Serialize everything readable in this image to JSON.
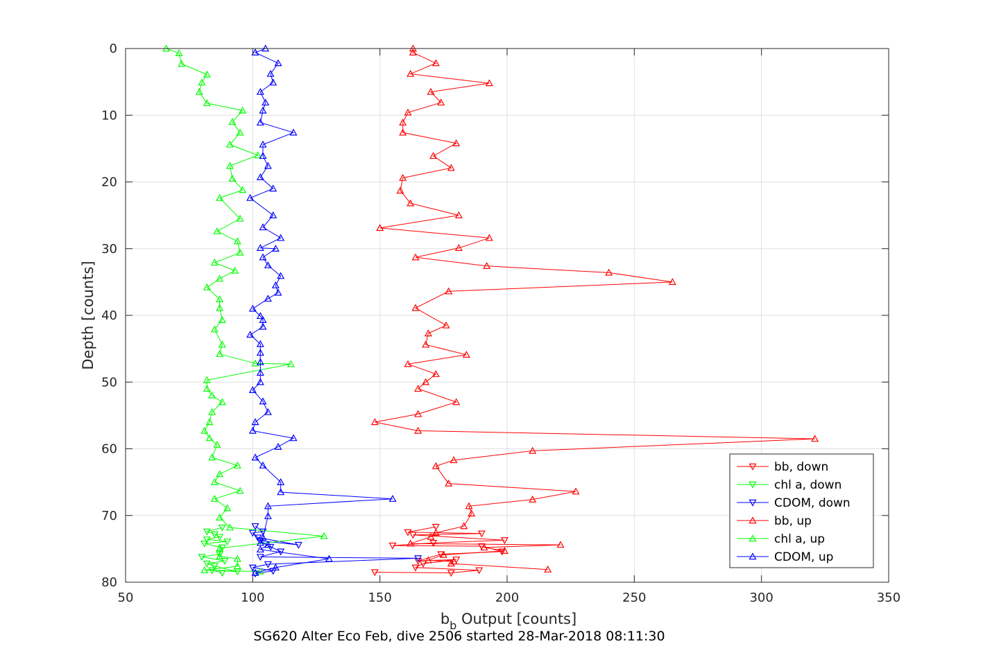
{
  "chart_data": {
    "type": "line",
    "xlabel_main": "b",
    "xlabel_sub": "b",
    "xlabel_rest": " Output [counts]",
    "ylabel": "Depth [counts]",
    "caption": "SG620 Alter Eco Feb, dive 2506 started 28-Mar-2018 08:11:30",
    "xlim": [
      50,
      350
    ],
    "ylim": [
      0,
      80
    ],
    "y_reversed": true,
    "xticks": [
      "50",
      "100",
      "150",
      "200",
      "250",
      "300",
      "350"
    ],
    "yticks": [
      "0",
      "10",
      "20",
      "30",
      "40",
      "50",
      "60",
      "70",
      "80"
    ],
    "grid": true,
    "legend_position": "bottom-right",
    "colors": {
      "red": "#ff0000",
      "green": "#00ff00",
      "blue": "#0000ff",
      "axis": "#262626",
      "grid": "#dfdfdf"
    },
    "series": [
      {
        "name": "bb, down",
        "color": "#ff0000",
        "marker": "triangle-down",
        "points": [
          [
            148,
            78.5
          ],
          [
            178,
            78.6
          ],
          [
            189,
            78.2
          ],
          [
            164,
            77.8
          ],
          [
            167,
            77.2
          ],
          [
            180,
            76.6
          ],
          [
            165,
            76.8
          ],
          [
            174,
            75.8
          ],
          [
            198,
            75.4
          ],
          [
            190,
            74.6
          ],
          [
            155,
            74.5
          ],
          [
            171,
            74.1
          ],
          [
            199,
            73.7
          ],
          [
            163,
            72.9
          ],
          [
            190,
            72.7
          ],
          [
            161,
            72.5
          ],
          [
            172,
            71.7
          ]
        ]
      },
      {
        "name": "chl a, down",
        "color": "#00ff00",
        "marker": "triangle-down",
        "points": [
          [
            88,
            78.6
          ],
          [
            84,
            78.2
          ],
          [
            94,
            78.4
          ],
          [
            85,
            77.6
          ],
          [
            82,
            77.2
          ],
          [
            89,
            76.8
          ],
          [
            80,
            76.2
          ],
          [
            87,
            75.8
          ],
          [
            88,
            74.8
          ],
          [
            81,
            74.2
          ],
          [
            90,
            73.9
          ],
          [
            82,
            73.6
          ],
          [
            87,
            73.2
          ],
          [
            85,
            72.8
          ],
          [
            82,
            72.4
          ],
          [
            88,
            71.8
          ]
        ]
      },
      {
        "name": "CDOM, down",
        "color": "#0000ff",
        "marker": "triangle-down",
        "points": [
          [
            101,
            78.7
          ],
          [
            108,
            78.3
          ],
          [
            100,
            77.8
          ],
          [
            106,
            77.3
          ],
          [
            165,
            76.4
          ],
          [
            103,
            76.2
          ],
          [
            111,
            75.4
          ],
          [
            107,
            74.7
          ],
          [
            103,
            73.8
          ],
          [
            118,
            74.4
          ],
          [
            102,
            73.3
          ],
          [
            100,
            72.6
          ],
          [
            104,
            72.4
          ],
          [
            101,
            71.6
          ]
        ]
      },
      {
        "name": "bb, up",
        "color": "#ff0000",
        "marker": "triangle-up",
        "points": [
          [
            216,
            78.1
          ],
          [
            178,
            77.2
          ],
          [
            179,
            76.9
          ],
          [
            169,
            76.7
          ],
          [
            175,
            75.9
          ],
          [
            199,
            75.3
          ],
          [
            191,
            74.8
          ],
          [
            221,
            74.4
          ],
          [
            162,
            74.2
          ],
          [
            170,
            73.2
          ],
          [
            172,
            72.6
          ],
          [
            183,
            71.6
          ],
          [
            186,
            69.7
          ],
          [
            185,
            68.6
          ],
          [
            210,
            67.6
          ],
          [
            227,
            66.4
          ],
          [
            177,
            65.2
          ],
          [
            172,
            62.6
          ],
          [
            179,
            61.7
          ],
          [
            210,
            60.3
          ],
          [
            321,
            58.5
          ],
          [
            165,
            57.3
          ],
          [
            148,
            56.0
          ],
          [
            165,
            54.8
          ],
          [
            180,
            53.0
          ],
          [
            165,
            51.0
          ],
          [
            168,
            50.0
          ],
          [
            172,
            48.8
          ],
          [
            161,
            47.3
          ],
          [
            184,
            45.9
          ],
          [
            168,
            44.4
          ],
          [
            169,
            42.7
          ],
          [
            176,
            41.5
          ],
          [
            164,
            38.9
          ],
          [
            177,
            36.4
          ],
          [
            265,
            35.0
          ],
          [
            240,
            33.6
          ],
          [
            192,
            32.6
          ],
          [
            164,
            31.3
          ],
          [
            181,
            29.9
          ],
          [
            193,
            28.4
          ],
          [
            150,
            26.9
          ],
          [
            181,
            25.0
          ],
          [
            162,
            23.2
          ],
          [
            158,
            21.3
          ],
          [
            159,
            19.4
          ],
          [
            178,
            17.9
          ],
          [
            171,
            16.1
          ],
          [
            180,
            14.2
          ],
          [
            159,
            12.6
          ],
          [
            159,
            11.1
          ],
          [
            161,
            9.6
          ],
          [
            174,
            8.1
          ],
          [
            170,
            6.5
          ],
          [
            193,
            5.2
          ],
          [
            162,
            3.8
          ],
          [
            172,
            2.2
          ],
          [
            163,
            0.6
          ],
          [
            163,
            0.0
          ]
        ]
      },
      {
        "name": "chl a, up",
        "color": "#00ff00",
        "marker": "triangle-up",
        "points": [
          [
            103,
            78.4
          ],
          [
            81,
            78.2
          ],
          [
            94,
            77.6
          ],
          [
            94,
            76.5
          ],
          [
            87,
            76.1
          ],
          [
            87,
            74.9
          ],
          [
            128,
            73.1
          ],
          [
            91,
            71.8
          ],
          [
            87,
            70.3
          ],
          [
            90,
            68.9
          ],
          [
            85,
            67.5
          ],
          [
            95,
            66.3
          ],
          [
            85,
            65.0
          ],
          [
            87,
            63.8
          ],
          [
            94,
            62.5
          ],
          [
            84,
            61.3
          ],
          [
            86,
            59.4
          ],
          [
            83,
            58.4
          ],
          [
            81,
            57.3
          ],
          [
            83,
            56.0
          ],
          [
            84,
            54.5
          ],
          [
            88,
            53.0
          ],
          [
            84,
            52.0
          ],
          [
            82,
            51.0
          ],
          [
            82,
            49.7
          ],
          [
            115,
            47.3
          ],
          [
            101,
            47.2
          ],
          [
            87,
            45.8
          ],
          [
            88,
            44.4
          ],
          [
            85,
            42.1
          ],
          [
            88,
            40.7
          ],
          [
            87,
            38.9
          ],
          [
            87,
            37.6
          ],
          [
            82,
            35.8
          ],
          [
            87,
            34.5
          ],
          [
            93,
            33.3
          ],
          [
            85,
            32.1
          ],
          [
            95,
            30.6
          ],
          [
            94,
            28.9
          ],
          [
            86,
            27.4
          ],
          [
            95,
            25.5
          ],
          [
            87,
            22.4
          ],
          [
            96,
            21.2
          ],
          [
            92,
            19.5
          ],
          [
            91,
            17.6
          ],
          [
            102,
            16.0
          ],
          [
            91,
            14.4
          ],
          [
            95,
            12.6
          ],
          [
            92,
            11.0
          ],
          [
            96,
            9.3
          ],
          [
            82,
            8.2
          ],
          [
            79,
            6.5
          ],
          [
            80,
            5.1
          ],
          [
            82,
            3.9
          ],
          [
            72,
            2.3
          ],
          [
            71,
            0.7
          ],
          [
            66,
            0.0
          ]
        ]
      },
      {
        "name": "CDOM, up",
        "color": "#0000ff",
        "marker": "triangle-up",
        "points": [
          [
            101,
            78.6
          ],
          [
            109,
            77.8
          ],
          [
            130,
            76.5
          ],
          [
            103,
            75.1
          ],
          [
            106,
            74.4
          ],
          [
            103,
            74.1
          ],
          [
            104,
            73.3
          ],
          [
            106,
            70.1
          ],
          [
            106,
            68.6
          ],
          [
            155,
            67.5
          ],
          [
            111,
            66.5
          ],
          [
            111,
            65.0
          ],
          [
            104,
            62.5
          ],
          [
            101,
            61.3
          ],
          [
            110,
            59.7
          ],
          [
            116,
            58.4
          ],
          [
            100,
            57.3
          ],
          [
            101,
            56.0
          ],
          [
            106,
            54.5
          ],
          [
            104,
            52.9
          ],
          [
            100,
            51.2
          ],
          [
            103,
            50.0
          ],
          [
            103,
            48.6
          ],
          [
            103,
            47.0
          ],
          [
            103,
            45.6
          ],
          [
            103,
            44.3
          ],
          [
            99,
            42.9
          ],
          [
            104,
            41.7
          ],
          [
            104,
            40.7
          ],
          [
            103,
            40.1
          ],
          [
            100,
            39.0
          ],
          [
            106,
            37.5
          ],
          [
            110,
            36.6
          ],
          [
            109,
            35.5
          ],
          [
            111,
            34.1
          ],
          [
            106,
            32.5
          ],
          [
            104,
            31.3
          ],
          [
            109,
            30.0
          ],
          [
            103,
            29.9
          ],
          [
            111,
            28.4
          ],
          [
            104,
            26.8
          ],
          [
            108,
            25.0
          ],
          [
            99,
            22.4
          ],
          [
            108,
            21.0
          ],
          [
            103,
            19.3
          ],
          [
            106,
            17.6
          ],
          [
            104,
            16.1
          ],
          [
            104,
            14.4
          ],
          [
            116,
            12.6
          ],
          [
            103,
            11.1
          ],
          [
            104,
            9.3
          ],
          [
            105,
            8.1
          ],
          [
            103,
            6.5
          ],
          [
            108,
            5.1
          ],
          [
            107,
            3.8
          ],
          [
            110,
            2.2
          ],
          [
            101,
            0.6
          ],
          [
            105,
            0.0
          ]
        ]
      }
    ]
  }
}
